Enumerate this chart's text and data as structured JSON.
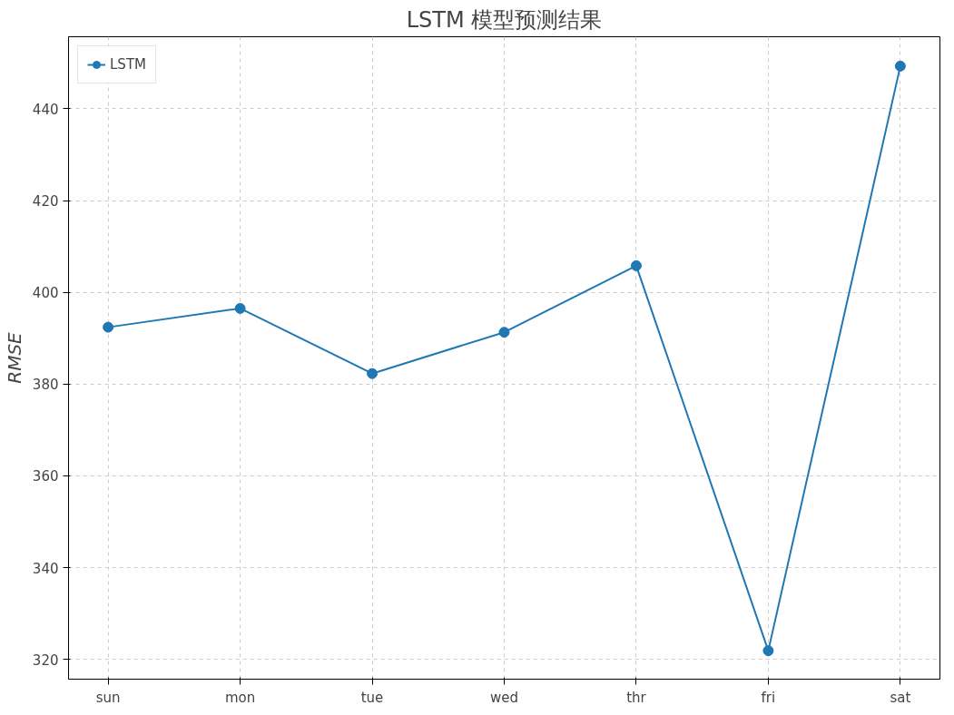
{
  "chart_data": {
    "type": "line",
    "title": "LSTM 模型预测结果",
    "ylabel": "RMSE",
    "categories": [
      "sun",
      "mon",
      "tue",
      "wed",
      "thr",
      "fri",
      "sat"
    ],
    "series": [
      {
        "name": "LSTM",
        "color": "#1f77b4",
        "values": [
          392.4,
          396.5,
          382.3,
          391.3,
          405.8,
          321.9,
          449.3
        ]
      }
    ],
    "ylim": [
      315.7,
      455.7
    ],
    "yticks": [
      320,
      340,
      360,
      380,
      400,
      420,
      440
    ],
    "grid": true,
    "legend": "top left",
    "marker": "circle",
    "line_style": "solid"
  }
}
